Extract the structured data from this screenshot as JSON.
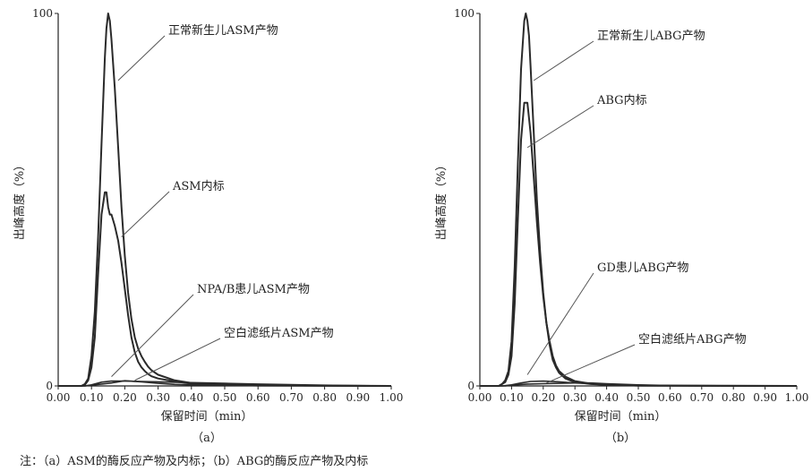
{
  "figure_note": "注：（a）ASM的酶反应产物及内标；（b）ABG的酶反应产物及内标",
  "colors": {
    "line": "#2a2a2a",
    "axis": "#222222",
    "pointer": "#555555"
  },
  "chart_data": [
    {
      "type": "line",
      "panel_label": "（a）",
      "xlabel": "保留时间（min）",
      "ylabel": "出峰高度（%）",
      "xlim": [
        0,
        1.0
      ],
      "ylim": [
        0,
        100
      ],
      "xticks": [
        "0.00",
        "0.10",
        "0.20",
        "0.30",
        "0.40",
        "0.50",
        "0.60",
        "0.70",
        "0.80",
        "0.90",
        "1.00"
      ],
      "yticks": [
        "0",
        "100"
      ],
      "series": [
        {
          "name": "正常新生儿ASM产物",
          "x": [
            0,
            0.07,
            0.08,
            0.09,
            0.1,
            0.11,
            0.12,
            0.13,
            0.14,
            0.145,
            0.15,
            0.155,
            0.16,
            0.17,
            0.18,
            0.19,
            0.2,
            0.21,
            0.22,
            0.23,
            0.24,
            0.25,
            0.26,
            0.27,
            0.28,
            0.3,
            0.35,
            0.4,
            0.5,
            0.6,
            1.0
          ],
          "y": [
            0,
            0,
            0.5,
            2,
            8,
            20,
            40,
            65,
            88,
            96,
            100,
            98,
            93,
            80,
            64,
            48,
            35,
            25,
            18,
            13,
            10,
            8,
            6.5,
            5.2,
            4.2,
            3,
            1.5,
            0.8,
            0.4,
            0.2,
            0
          ]
        },
        {
          "name": "ASM内标",
          "x": [
            0,
            0.07,
            0.08,
            0.09,
            0.1,
            0.11,
            0.12,
            0.13,
            0.14,
            0.145,
            0.15,
            0.155,
            0.16,
            0.17,
            0.18,
            0.19,
            0.2,
            0.21,
            0.22,
            0.23,
            0.24,
            0.25,
            0.26,
            0.27,
            0.28,
            0.3,
            0.35,
            0.4,
            0.5,
            0.6,
            1.0
          ],
          "y": [
            0,
            0,
            0.3,
            1.5,
            5,
            13,
            30,
            46,
            52,
            52,
            48,
            46,
            46,
            43,
            39,
            33,
            26,
            19,
            13,
            9,
            6.5,
            5,
            4,
            3.2,
            2.6,
            2,
            1.2,
            0.6,
            0.3,
            0.1,
            0
          ]
        },
        {
          "name": "NPA/B患儿ASM产物",
          "x": [
            0,
            0.08,
            0.1,
            0.13,
            0.16,
            0.2,
            0.25,
            0.3,
            0.4,
            0.5,
            0.6,
            0.8,
            1.0
          ],
          "y": [
            0,
            0,
            0.3,
            1,
            1.3,
            1.3,
            1.2,
            1.1,
            0.9,
            0.7,
            0.5,
            0.2,
            0
          ]
        },
        {
          "name": "空白滤纸片ASM产物",
          "x": [
            0,
            0.08,
            0.1,
            0.13,
            0.16,
            0.2,
            0.25,
            0.3,
            0.35,
            0.4,
            0.5,
            0.6,
            1.0
          ],
          "y": [
            0,
            0,
            0.2,
            0.5,
            0.8,
            1.4,
            1.1,
            0.7,
            0.4,
            0.3,
            0.2,
            0.1,
            0
          ]
        }
      ],
      "annotations": [
        {
          "text": "正常新生儿ASM产物",
          "series": 0,
          "x": 0.18,
          "y": 82
        },
        {
          "text": "ASM内标",
          "series": 1,
          "x": 0.19,
          "y": 40
        },
        {
          "text": "NPA/B患儿ASM产物",
          "series": 2,
          "x": 0.16,
          "y": 2.5
        },
        {
          "text": "空白滤纸片ASM产物",
          "series": 3,
          "x": 0.23,
          "y": 1.5
        }
      ]
    },
    {
      "type": "line",
      "panel_label": "（b）",
      "xlabel": "保留时间（min）",
      "ylabel": "出峰高度（%）",
      "xlim": [
        0,
        1.0
      ],
      "ylim": [
        0,
        100
      ],
      "xticks": [
        "0.00",
        "0.10",
        "0.20",
        "0.30",
        "0.40",
        "0.50",
        "0.60",
        "0.70",
        "0.80",
        "0.90",
        "1.00"
      ],
      "yticks": [
        "0",
        "100"
      ],
      "series": [
        {
          "name": "正常新生儿ABG产物",
          "x": [
            0,
            0.06,
            0.07,
            0.08,
            0.09,
            0.1,
            0.11,
            0.12,
            0.13,
            0.14,
            0.145,
            0.15,
            0.155,
            0.16,
            0.17,
            0.18,
            0.19,
            0.2,
            0.21,
            0.22,
            0.23,
            0.24,
            0.25,
            0.27,
            0.3,
            0.35,
            0.4,
            0.5,
            1.0
          ],
          "y": [
            0,
            0,
            0.5,
            1.5,
            4,
            12,
            32,
            60,
            85,
            98,
            100,
            98,
            94,
            86,
            68,
            50,
            36,
            25,
            17,
            11,
            7,
            5,
            3.5,
            2,
            1,
            0.5,
            0.3,
            0.1,
            0
          ]
        },
        {
          "name": "ABG内标",
          "x": [
            0,
            0.06,
            0.07,
            0.08,
            0.09,
            0.1,
            0.11,
            0.12,
            0.13,
            0.14,
            0.15,
            0.16,
            0.17,
            0.18,
            0.19,
            0.2,
            0.21,
            0.22,
            0.23,
            0.24,
            0.25,
            0.27,
            0.3,
            0.35,
            0.4,
            0.5,
            1.0
          ],
          "y": [
            0,
            0,
            0.5,
            1,
            3,
            8,
            22,
            45,
            66,
            76,
            76,
            68,
            56,
            44,
            33,
            24,
            17,
            12,
            8,
            5.5,
            4,
            2.5,
            1.3,
            0.6,
            0.3,
            0.1,
            0
          ]
        },
        {
          "name": "GD患儿ABG产物",
          "x": [
            0,
            0.07,
            0.1,
            0.13,
            0.16,
            0.2,
            0.25,
            0.3,
            0.35,
            0.4,
            0.5,
            0.6,
            1.0
          ],
          "y": [
            0,
            0,
            0.3,
            0.8,
            1.2,
            1.3,
            1.1,
            0.8,
            0.6,
            0.4,
            0.2,
            0.1,
            0
          ]
        },
        {
          "name": "空白滤纸片ABG产物",
          "x": [
            0,
            0.08,
            0.1,
            0.15,
            0.2,
            0.25,
            0.3,
            0.35,
            0.4,
            0.5,
            0.6,
            1.0
          ],
          "y": [
            0,
            0,
            0.2,
            0.5,
            0.6,
            0.7,
            0.8,
            0.8,
            0.6,
            0.3,
            0.1,
            0
          ]
        }
      ],
      "annotations": [
        {
          "text": "正常新生儿ABG产物",
          "series": 0,
          "x": 0.17,
          "y": 82
        },
        {
          "text": "ABG内标",
          "series": 1,
          "x": 0.15,
          "y": 64
        },
        {
          "text": "GD患儿ABG产物",
          "series": 2,
          "x": 0.15,
          "y": 3
        },
        {
          "text": "空白滤纸片ABG产物",
          "series": 3,
          "x": 0.21,
          "y": 0.8
        }
      ]
    }
  ]
}
